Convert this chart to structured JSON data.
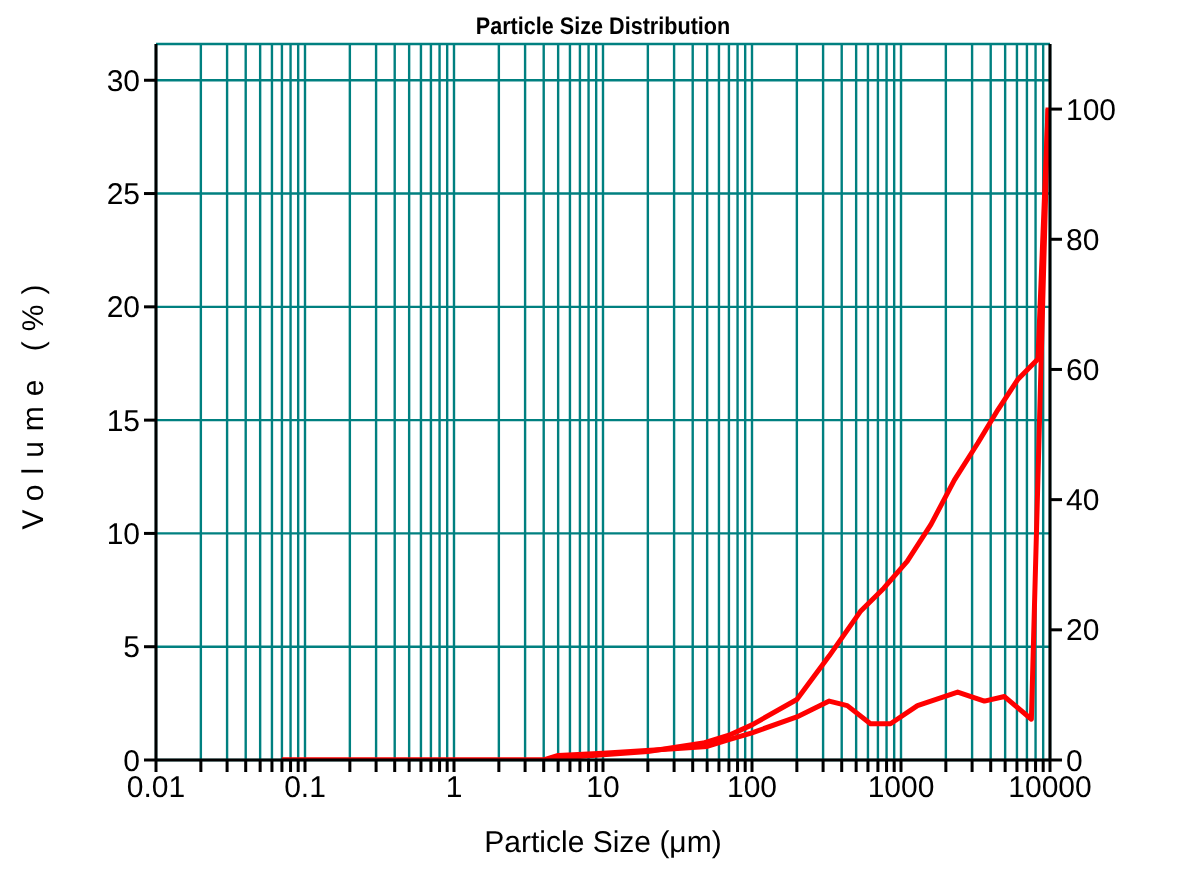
{
  "chart_data": {
    "type": "line",
    "title": "Particle Size Distribution",
    "xlabel": "Particle Size (μm)",
    "ylabel": "Volume (%)",
    "log": "x",
    "grid": true,
    "legend": false,
    "marker": "none",
    "line_style": "solid",
    "xlim": [
      0.01,
      10000
    ],
    "xticks": [
      0.01,
      {
        "value": 0.02,
        "label": null
      },
      {
        "value": 0.03,
        "label": null
      },
      {
        "value": 0.04,
        "label": null
      },
      {
        "value": 0.05,
        "label": null
      },
      {
        "value": 0.06,
        "label": null
      },
      {
        "value": 0.07,
        "label": null
      },
      {
        "value": 0.08,
        "label": null
      },
      {
        "value": 0.09,
        "label": null
      },
      0.1,
      {
        "value": 0.2,
        "label": null
      },
      {
        "value": 0.3,
        "label": null
      },
      {
        "value": 0.4,
        "label": null
      },
      {
        "value": 0.5,
        "label": null
      },
      {
        "value": 0.6,
        "label": null
      },
      {
        "value": 0.7,
        "label": null
      },
      {
        "value": 0.8,
        "label": null
      },
      {
        "value": 0.9,
        "label": null
      },
      1,
      {
        "value": 2,
        "label": null
      },
      {
        "value": 3,
        "label": null
      },
      {
        "value": 4,
        "label": null
      },
      {
        "value": 5,
        "label": null
      },
      {
        "value": 6,
        "label": null
      },
      {
        "value": 7,
        "label": null
      },
      {
        "value": 8,
        "label": null
      },
      {
        "value": 9,
        "label": null
      },
      10,
      {
        "value": 20,
        "label": null
      },
      {
        "value": 30,
        "label": null
      },
      {
        "value": 40,
        "label": null
      },
      {
        "value": 50,
        "label": null
      },
      {
        "value": 60,
        "label": null
      },
      {
        "value": 70,
        "label": null
      },
      {
        "value": 80,
        "label": null
      },
      {
        "value": 90,
        "label": null
      },
      100,
      {
        "value": 200,
        "label": null
      },
      {
        "value": 300,
        "label": null
      },
      {
        "value": 400,
        "label": null
      },
      {
        "value": 500,
        "label": null
      },
      {
        "value": 600,
        "label": null
      },
      {
        "value": 700,
        "label": null
      },
      {
        "value": 800,
        "label": null
      },
      {
        "value": 900,
        "label": null
      },
      1000,
      {
        "value": 2000,
        "label": null
      },
      {
        "value": 3000,
        "label": null
      },
      {
        "value": 4000,
        "label": null
      },
      {
        "value": 5000,
        "label": null
      },
      {
        "value": 6000,
        "label": null
      },
      {
        "value": 7000,
        "label": null
      },
      {
        "value": 8000,
        "label": null
      },
      {
        "value": 9000,
        "label": null
      },
      10000
    ],
    "ylim": [
      0,
      31.6
    ],
    "yticks": [
      0,
      5,
      10,
      15,
      20,
      25,
      30
    ],
    "y2lim": [
      0,
      110
    ],
    "y2ticks": [
      0,
      20,
      40,
      60,
      80,
      100
    ],
    "series": [
      {
        "color": "#ff0000",
        "x": [
          0.07,
          4,
          5,
          10,
          30,
          50,
          70,
          100,
          200,
          330,
          436,
          624,
          850,
          1290,
          2400,
          3630,
          4950,
          7500,
          9700
        ],
        "values": [
          0,
          0,
          0.2,
          0.3,
          0.5,
          0.6,
          0.9,
          1.2,
          1.9,
          2.6,
          2.4,
          1.6,
          1.6,
          2.4,
          3.0,
          2.6,
          2.8,
          1.8,
          28.8
        ]
      },
      {
        "color": "#ff0000",
        "axis": "y2",
        "x": [
          0.07,
          4,
          5,
          10,
          20,
          47,
          70,
          100,
          200,
          330,
          533,
          767,
          1100,
          1590,
          2280,
          3280,
          4470,
          6100,
          8300,
          9700
        ],
        "values": [
          0,
          0,
          0.3,
          0.8,
          1.3,
          2.6,
          3.8,
          5.4,
          9.3,
          16,
          22.8,
          26.4,
          30.5,
          36.2,
          43,
          48.7,
          53.8,
          58.5,
          61.6,
          100
        ]
      }
    ]
  }
}
